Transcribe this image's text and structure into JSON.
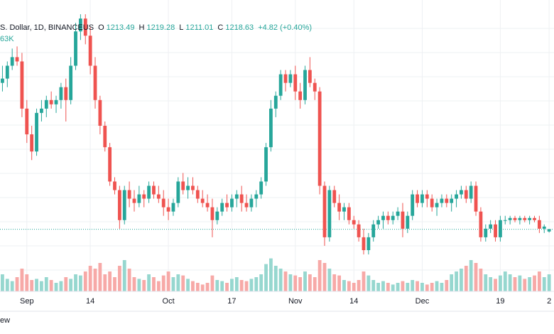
{
  "header": {
    "symbol_text": "S. Dollar, 1D, BINANCEUS",
    "open_label": "O",
    "open": "1213.49",
    "high_label": "H",
    "high": "1219.28",
    "low_label": "L",
    "low": "1211.01",
    "close_label": "C",
    "close": "1218.63",
    "change": "+4.82 (+0.40%)",
    "volume": "63K"
  },
  "footer": {
    "text": "ew"
  },
  "colors": {
    "up": "#26a69a",
    "down": "#ef5350",
    "up_volume": "#96d7cf",
    "down_volume": "#f7a9a7",
    "grid": "#eef0f3",
    "last_price_line": "#26a69a"
  },
  "chart_data": {
    "type": "candlestick",
    "x_ticks": [
      {
        "label": "Sep",
        "index": 5
      },
      {
        "label": "14",
        "index": 18
      },
      {
        "label": "Oct",
        "index": 34
      },
      {
        "label": "17",
        "index": 47
      },
      {
        "label": "Nov",
        "index": 60
      },
      {
        "label": "14",
        "index": 72
      },
      {
        "label": "Dec",
        "index": 86
      },
      {
        "label": "19",
        "index": 102
      },
      {
        "label": "2",
        "index": 112
      }
    ],
    "grid": true,
    "last_price": 1218.63,
    "price_range": [
      1170,
      1740
    ],
    "volume_range": [
      0,
      100
    ],
    "candles": [
      [
        1560,
        1600,
        1540,
        1570,
        30
      ],
      [
        1570,
        1610,
        1550,
        1600,
        22
      ],
      [
        1600,
        1640,
        1590,
        1620,
        18
      ],
      [
        1620,
        1645,
        1600,
        1610,
        25
      ],
      [
        1610,
        1630,
        1480,
        1500,
        40
      ],
      [
        1500,
        1520,
        1420,
        1440,
        30
      ],
      [
        1440,
        1460,
        1380,
        1400,
        20
      ],
      [
        1400,
        1500,
        1390,
        1490,
        22
      ],
      [
        1490,
        1520,
        1470,
        1500,
        18
      ],
      [
        1500,
        1530,
        1480,
        1520,
        25
      ],
      [
        1520,
        1540,
        1500,
        1510,
        20
      ],
      [
        1510,
        1530,
        1490,
        1520,
        15
      ],
      [
        1520,
        1560,
        1500,
        1550,
        18
      ],
      [
        1550,
        1570,
        1470,
        1520,
        25
      ],
      [
        1520,
        1620,
        1510,
        1600,
        22
      ],
      [
        1600,
        1700,
        1590,
        1680,
        30
      ],
      [
        1680,
        1720,
        1660,
        1710,
        28
      ],
      [
        1710,
        1720,
        1650,
        1670,
        35
      ],
      [
        1670,
        1690,
        1580,
        1600,
        45
      ],
      [
        1600,
        1620,
        1500,
        1520,
        40
      ],
      [
        1520,
        1530,
        1440,
        1460,
        50
      ],
      [
        1460,
        1470,
        1400,
        1410,
        30
      ],
      [
        1410,
        1420,
        1320,
        1330,
        35
      ],
      [
        1330,
        1340,
        1300,
        1310,
        25
      ],
      [
        1310,
        1320,
        1220,
        1240,
        45
      ],
      [
        1240,
        1320,
        1230,
        1310,
        55
      ],
      [
        1310,
        1330,
        1270,
        1290,
        40
      ],
      [
        1290,
        1310,
        1260,
        1280,
        25
      ],
      [
        1280,
        1320,
        1270,
        1300,
        22
      ],
      [
        1300,
        1310,
        1270,
        1290,
        20
      ],
      [
        1290,
        1330,
        1280,
        1320,
        30
      ],
      [
        1320,
        1330,
        1290,
        1300,
        25
      ],
      [
        1300,
        1320,
        1280,
        1290,
        18
      ],
      [
        1290,
        1310,
        1250,
        1270,
        28
      ],
      [
        1270,
        1290,
        1240,
        1260,
        35
      ],
      [
        1260,
        1290,
        1250,
        1280,
        25
      ],
      [
        1280,
        1340,
        1270,
        1330,
        30
      ],
      [
        1330,
        1350,
        1300,
        1310,
        28
      ],
      [
        1310,
        1340,
        1290,
        1320,
        22
      ],
      [
        1320,
        1340,
        1300,
        1310,
        18
      ],
      [
        1310,
        1320,
        1280,
        1290,
        15
      ],
      [
        1290,
        1310,
        1270,
        1280,
        12
      ],
      [
        1280,
        1300,
        1260,
        1270,
        15
      ],
      [
        1270,
        1290,
        1200,
        1240,
        28
      ],
      [
        1240,
        1270,
        1230,
        1260,
        20
      ],
      [
        1260,
        1290,
        1250,
        1280,
        18
      ],
      [
        1280,
        1300,
        1260,
        1270,
        15
      ],
      [
        1270,
        1300,
        1260,
        1290,
        22
      ],
      [
        1290,
        1310,
        1270,
        1300,
        25
      ],
      [
        1300,
        1320,
        1260,
        1280,
        20
      ],
      [
        1280,
        1300,
        1260,
        1270,
        18
      ],
      [
        1270,
        1300,
        1260,
        1290,
        22
      ],
      [
        1290,
        1310,
        1270,
        1300,
        25
      ],
      [
        1300,
        1340,
        1290,
        1330,
        30
      ],
      [
        1330,
        1420,
        1320,
        1410,
        48
      ],
      [
        1410,
        1520,
        1400,
        1500,
        58
      ],
      [
        1500,
        1540,
        1480,
        1530,
        45
      ],
      [
        1530,
        1590,
        1520,
        1580,
        40
      ],
      [
        1580,
        1590,
        1540,
        1560,
        35
      ],
      [
        1560,
        1590,
        1550,
        1580,
        30
      ],
      [
        1580,
        1600,
        1520,
        1540,
        28
      ],
      [
        1540,
        1560,
        1500,
        1520,
        25
      ],
      [
        1520,
        1600,
        1510,
        1590,
        35
      ],
      [
        1590,
        1620,
        1550,
        1560,
        30
      ],
      [
        1560,
        1570,
        1520,
        1540,
        25
      ],
      [
        1540,
        1550,
        1300,
        1320,
        55
      ],
      [
        1320,
        1330,
        1180,
        1200,
        50
      ],
      [
        1200,
        1320,
        1190,
        1310,
        40
      ],
      [
        1310,
        1320,
        1270,
        1280,
        30
      ],
      [
        1280,
        1300,
        1240,
        1260,
        28
      ],
      [
        1260,
        1280,
        1240,
        1270,
        20
      ],
      [
        1270,
        1280,
        1230,
        1240,
        18
      ],
      [
        1240,
        1250,
        1220,
        1230,
        15
      ],
      [
        1230,
        1240,
        1190,
        1200,
        20
      ],
      [
        1200,
        1220,
        1160,
        1170,
        35
      ],
      [
        1170,
        1210,
        1160,
        1200,
        28
      ],
      [
        1200,
        1240,
        1190,
        1230,
        20
      ],
      [
        1230,
        1250,
        1220,
        1240,
        15
      ],
      [
        1240,
        1260,
        1220,
        1250,
        18
      ],
      [
        1250,
        1260,
        1230,
        1240,
        15
      ],
      [
        1240,
        1260,
        1230,
        1250,
        12
      ],
      [
        1250,
        1270,
        1240,
        1260,
        15
      ],
      [
        1260,
        1280,
        1200,
        1220,
        18
      ],
      [
        1220,
        1260,
        1210,
        1250,
        15
      ],
      [
        1250,
        1310,
        1240,
        1300,
        20
      ],
      [
        1300,
        1310,
        1270,
        1280,
        18
      ],
      [
        1280,
        1310,
        1270,
        1300,
        15
      ],
      [
        1300,
        1310,
        1270,
        1290,
        12
      ],
      [
        1290,
        1300,
        1260,
        1270,
        15
      ],
      [
        1270,
        1290,
        1250,
        1280,
        18
      ],
      [
        1280,
        1300,
        1270,
        1290,
        15
      ],
      [
        1290,
        1300,
        1270,
        1280,
        20
      ],
      [
        1280,
        1300,
        1260,
        1290,
        30
      ],
      [
        1290,
        1310,
        1270,
        1300,
        35
      ],
      [
        1300,
        1320,
        1290,
        1310,
        40
      ],
      [
        1310,
        1320,
        1280,
        1290,
        45
      ],
      [
        1290,
        1330,
        1280,
        1320,
        55
      ],
      [
        1320,
        1330,
        1250,
        1260,
        50
      ],
      [
        1260,
        1270,
        1190,
        1200,
        40
      ],
      [
        1200,
        1230,
        1190,
        1220,
        30
      ],
      [
        1220,
        1240,
        1210,
        1230,
        25
      ],
      [
        1230,
        1240,
        1190,
        1200,
        22
      ],
      [
        1200,
        1250,
        1190,
        1240,
        28
      ],
      [
        1240,
        1250,
        1230,
        1240,
        35
      ],
      [
        1240,
        1250,
        1230,
        1245,
        30
      ],
      [
        1245,
        1250,
        1235,
        1240,
        25
      ],
      [
        1240,
        1250,
        1230,
        1245,
        28
      ],
      [
        1245,
        1250,
        1235,
        1240,
        22
      ],
      [
        1240,
        1250,
        1230,
        1245,
        25
      ],
      [
        1245,
        1250,
        1235,
        1240,
        28
      ],
      [
        1240,
        1250,
        1210,
        1220,
        35
      ],
      [
        1220,
        1230,
        1210,
        1225,
        25
      ],
      [
        1213.49,
        1219.28,
        1211.01,
        1218.63,
        30
      ]
    ]
  }
}
